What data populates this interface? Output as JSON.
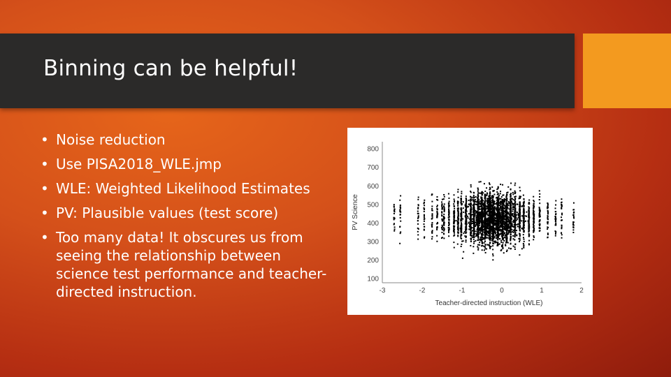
{
  "slide": {
    "title": "Binning can be helpful!",
    "bullets": [
      "Noise reduction",
      "Use PISA2018_WLE.jmp",
      "WLE: Weighted Likelihood Estimates",
      "PV: Plausible values (test score)",
      "Too many data! It obscures us from seeing the relationship between science test performance and teacher-directed instruction."
    ],
    "bullet_glyph": "•"
  },
  "chart_data": {
    "type": "scatter",
    "xlabel": "Teacher-directed instruction (WLE)",
    "ylabel": "PV Science",
    "xlim": [
      -3,
      2
    ],
    "ylim": [
      80,
      840
    ],
    "x_ticks": [
      -3,
      -2,
      -1,
      0,
      1,
      2
    ],
    "y_ticks": [
      100,
      200,
      300,
      400,
      500,
      600,
      700,
      800
    ],
    "x_tick_labels": [
      "-3",
      "-2",
      "-1",
      "0",
      "1",
      "2"
    ],
    "y_tick_labels": [
      "100",
      "200",
      "300",
      "400",
      "500",
      "600",
      "700",
      "800"
    ],
    "discrete_x": [
      -2.7,
      -2.55,
      -2.1,
      -1.95,
      -1.75,
      -1.62,
      -1.5,
      -1.45,
      -1.33,
      -1.2,
      -1.1,
      -1.02,
      -0.9,
      -0.78,
      -0.7,
      -0.6,
      -0.5,
      -0.42,
      -0.3,
      -0.22,
      -0.1,
      0.02,
      0.12,
      0.22,
      0.33,
      0.45,
      0.55,
      0.68,
      0.8,
      0.95,
      1.15,
      1.35,
      1.5,
      1.8
    ],
    "point_color": "#000000",
    "grid": false
  }
}
